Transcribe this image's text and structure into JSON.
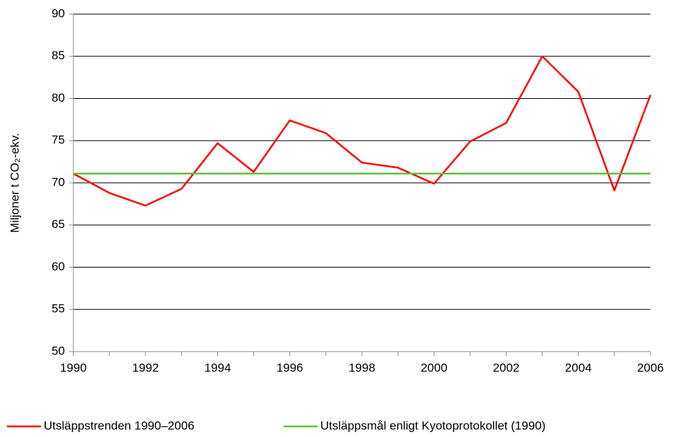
{
  "chart_data": {
    "type": "line",
    "y_axis_label": "Miljoner t CO₂-ekv.",
    "series": [
      {
        "name": "Utsläppstrenden 1990–2006",
        "color": "#ff0000",
        "x": [
          1990,
          1991,
          1992,
          1993,
          1994,
          1995,
          1996,
          1997,
          1998,
          1999,
          2000,
          2001,
          2002,
          2003,
          2004,
          2005,
          2006
        ],
        "values": [
          71.1,
          68.8,
          67.3,
          69.3,
          74.7,
          71.3,
          77.4,
          75.9,
          72.4,
          71.8,
          69.9,
          74.9,
          77.1,
          85.0,
          80.8,
          69.1,
          80.4
        ]
      },
      {
        "name": "Utsläppsmål enligt Kyotoprotokollet (1990)",
        "color": "#5cc13a",
        "x": [
          1990,
          2006
        ],
        "values": [
          71.1,
          71.1
        ]
      }
    ],
    "xlim": [
      1990,
      2006
    ],
    "xticks": [
      1990,
      1992,
      1994,
      1996,
      1998,
      2000,
      2002,
      2004,
      2006
    ],
    "xticks_minor": [
      1991,
      1993,
      1995,
      1997,
      1999,
      2001,
      2003,
      2005
    ],
    "ylim": [
      50,
      90
    ],
    "yticks": [
      50,
      55,
      60,
      65,
      70,
      75,
      80,
      85,
      90
    ],
    "grid": true,
    "legend": "bottom"
  }
}
